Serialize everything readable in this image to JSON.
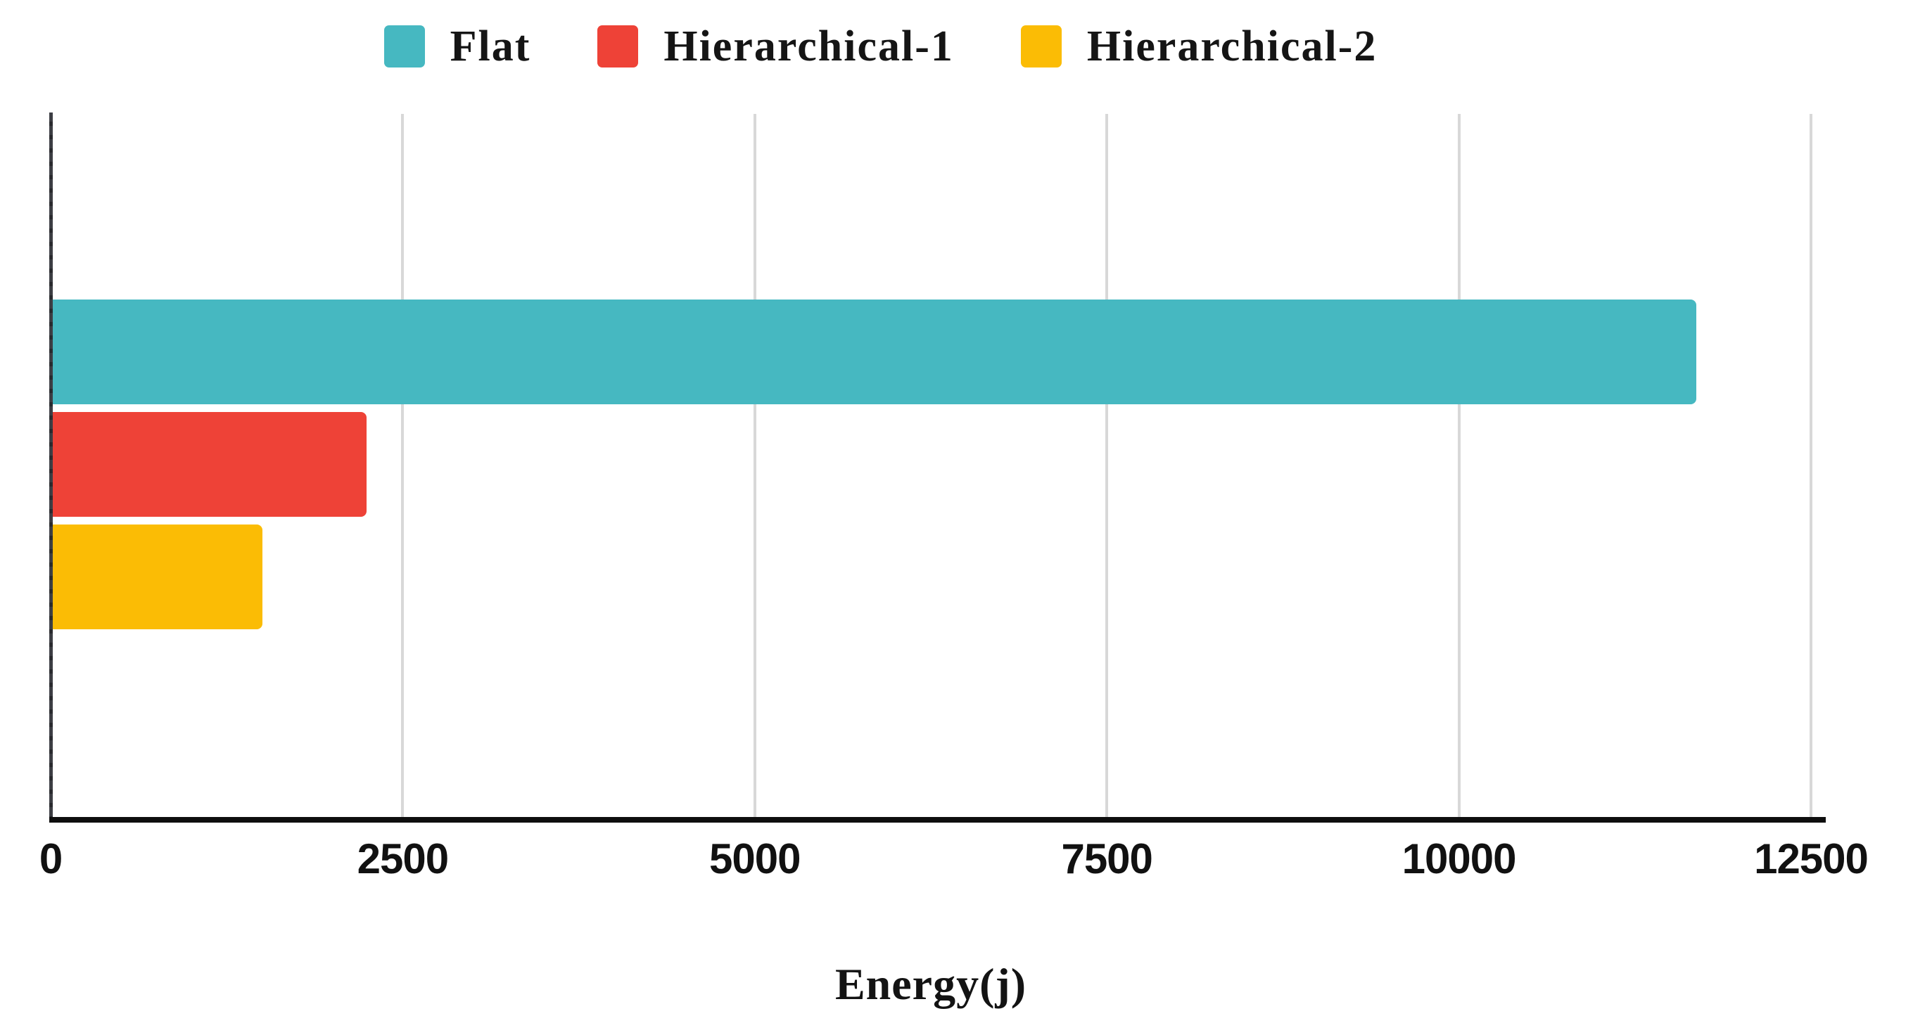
{
  "chart_data": {
    "type": "bar",
    "orientation": "horizontal",
    "title": "",
    "xlabel": "Energy(j)",
    "ylabel": "",
    "xlim": [
      0,
      12500
    ],
    "x_ticks": [
      0,
      2500,
      5000,
      7500,
      10000,
      12500
    ],
    "grid": "vertical-gridlines",
    "legend_position": "top-center",
    "series": [
      {
        "name": "Flat",
        "value": 11670,
        "color": "#46b8c1"
      },
      {
        "name": "Hierarchical-1",
        "value": 2230,
        "color": "#ee4237"
      },
      {
        "name": "Hierarchical-2",
        "value": 1490,
        "color": "#fbbc05"
      }
    ]
  },
  "colors": {
    "grid_line": "#d8d8d8",
    "x_axis_line": "#0e0e0e",
    "y_axis_line": "#36373c",
    "tick_label": "#111111",
    "legend_label": "#151515"
  }
}
